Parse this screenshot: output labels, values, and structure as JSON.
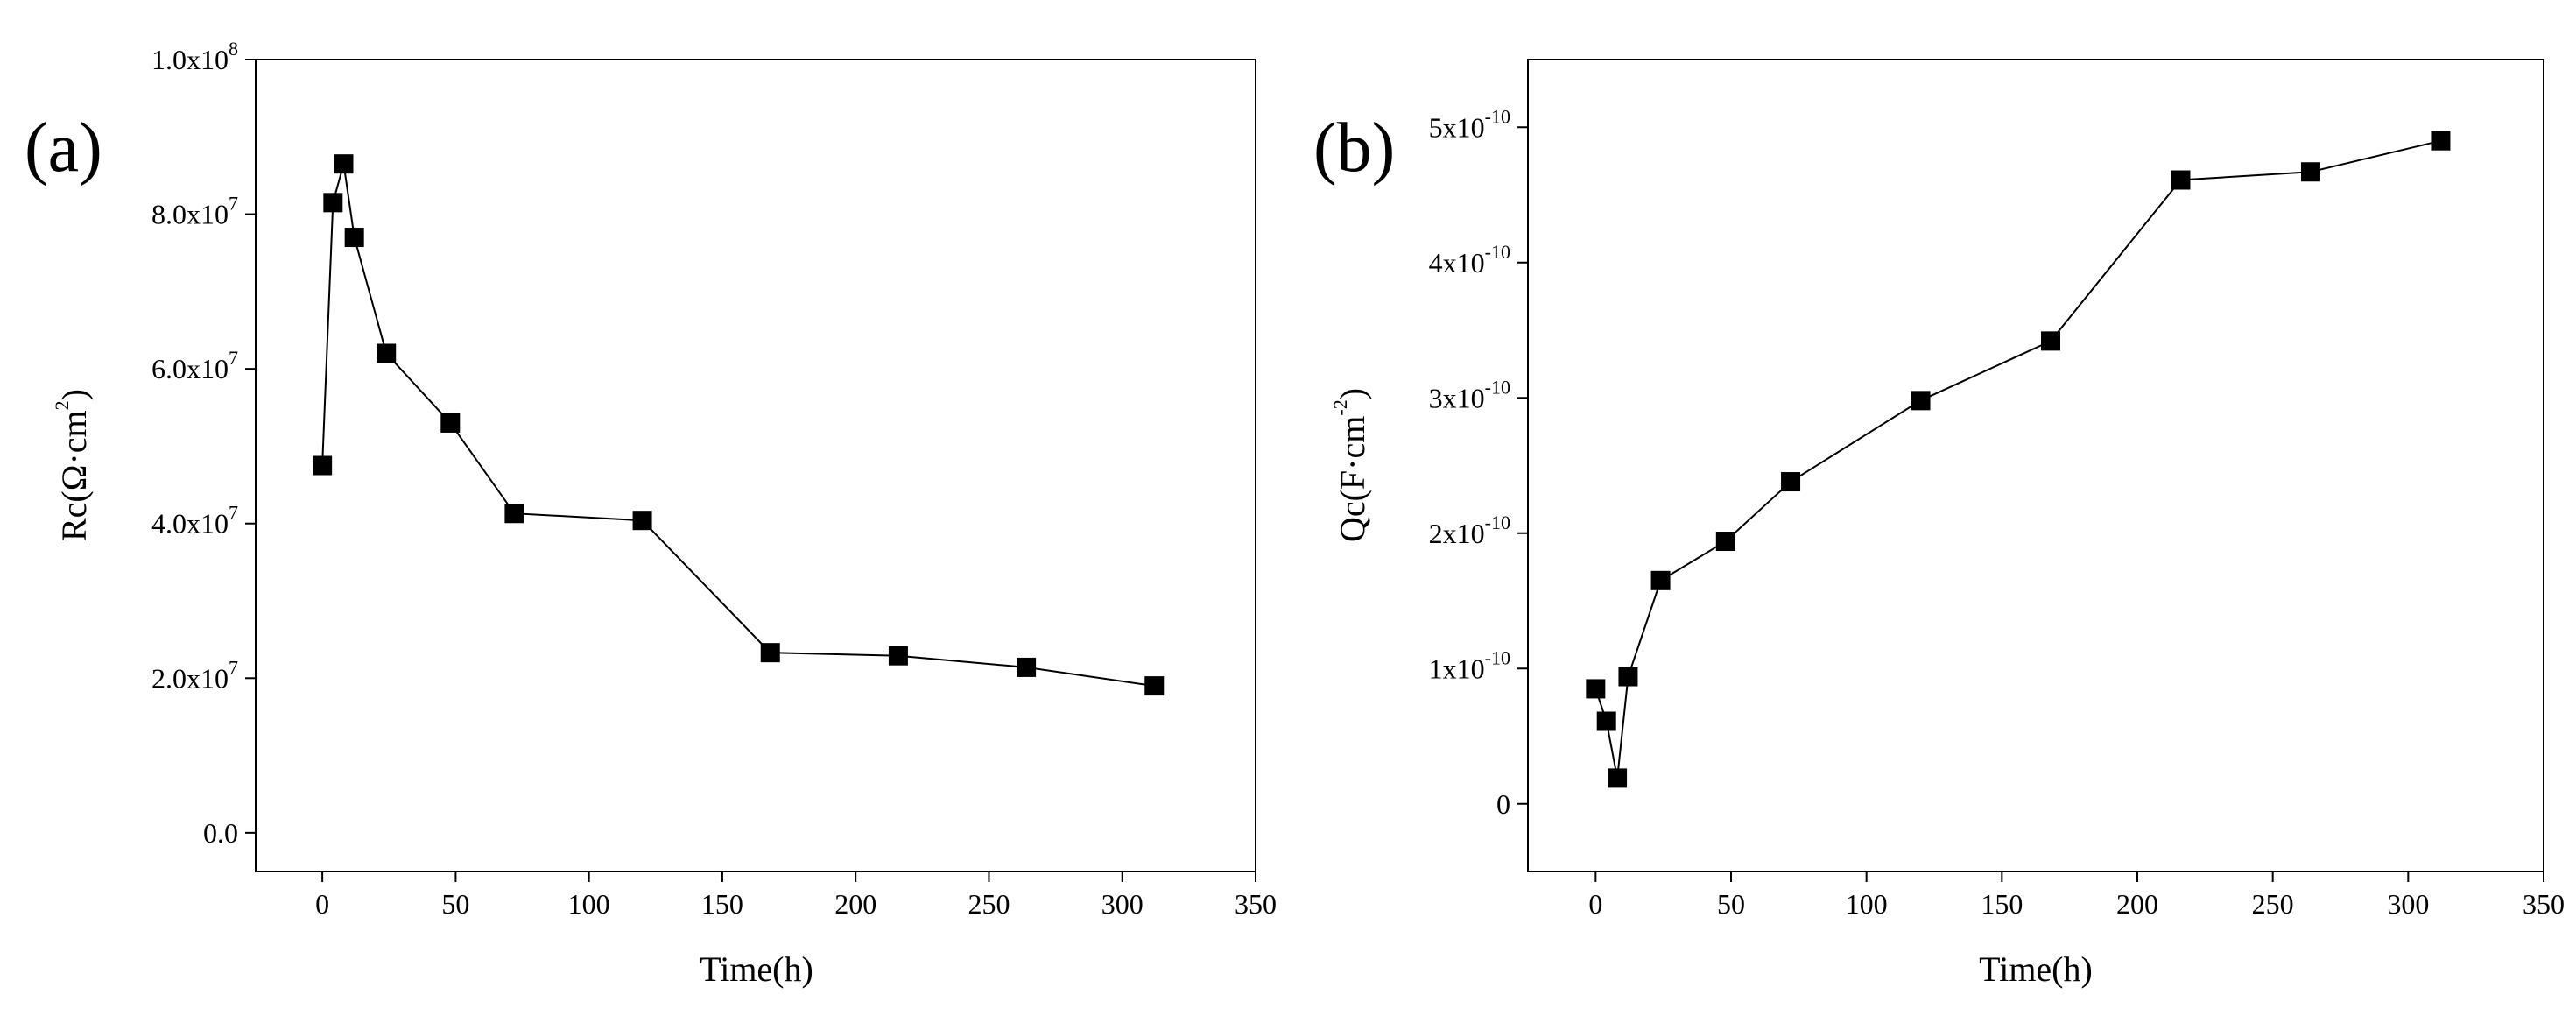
{
  "chart_data": [
    {
      "type": "line",
      "panel_label": "(a)",
      "title": "",
      "xlabel": "Time(h)",
      "ylabel_parts": {
        "base": "Rc(Ω·cm",
        "sup": "2",
        "tail": ")"
      },
      "xlim": [
        -25,
        350
      ],
      "ylim": [
        -5000000,
        100000000
      ],
      "grid": false,
      "x_ticks": [
        {
          "value": 0,
          "label": "0"
        },
        {
          "value": 50,
          "label": "50"
        },
        {
          "value": 100,
          "label": "100"
        },
        {
          "value": 150,
          "label": "150"
        },
        {
          "value": 200,
          "label": "200"
        },
        {
          "value": 250,
          "label": "250"
        },
        {
          "value": 300,
          "label": "300"
        },
        {
          "value": 350,
          "label": "350"
        }
      ],
      "y_ticks": [
        {
          "value": 0,
          "base": "0.0",
          "exp": ""
        },
        {
          "value": 20000000,
          "base": "2.0x10",
          "exp": "7"
        },
        {
          "value": 40000000,
          "base": "4.0x10",
          "exp": "7"
        },
        {
          "value": 60000000,
          "base": "6.0x10",
          "exp": "7"
        },
        {
          "value": 80000000,
          "base": "8.0x10",
          "exp": "7"
        },
        {
          "value": 100000000,
          "base": "1.0x10",
          "exp": "8"
        }
      ],
      "series": [
        {
          "name": "Rc",
          "marker": "square",
          "color": "#000000",
          "x": [
            0,
            4,
            8,
            12,
            24,
            48,
            72,
            120,
            168,
            216,
            264,
            312
          ],
          "y": [
            47500000,
            81500000,
            86500000,
            77000000,
            62000000,
            53000000,
            41300000,
            40400000,
            23300000,
            22900000,
            21400000,
            19000000
          ]
        }
      ]
    },
    {
      "type": "line",
      "panel_label": "(b)",
      "title": "",
      "xlabel": "Time(h)",
      "ylabel_parts": {
        "base": "Qc(F·cm",
        "sup": "-2",
        "tail": ")"
      },
      "xlim": [
        -25,
        350
      ],
      "ylim": [
        -5e-11,
        5.5e-10
      ],
      "grid": false,
      "x_ticks": [
        {
          "value": 0,
          "label": "0"
        },
        {
          "value": 50,
          "label": "50"
        },
        {
          "value": 100,
          "label": "100"
        },
        {
          "value": 150,
          "label": "150"
        },
        {
          "value": 200,
          "label": "200"
        },
        {
          "value": 250,
          "label": "250"
        },
        {
          "value": 300,
          "label": "300"
        },
        {
          "value": 350,
          "label": "350"
        }
      ],
      "y_ticks": [
        {
          "value": 0,
          "base": "0",
          "exp": ""
        },
        {
          "value": 1e-10,
          "base": "1x10",
          "exp": "-10"
        },
        {
          "value": 2e-10,
          "base": "2x10",
          "exp": "-10"
        },
        {
          "value": 3e-10,
          "base": "3x10",
          "exp": "-10"
        },
        {
          "value": 4e-10,
          "base": "4x10",
          "exp": "-10"
        },
        {
          "value": 5e-10,
          "base": "5x10",
          "exp": "-10"
        }
      ],
      "series": [
        {
          "name": "Qc",
          "marker": "square",
          "color": "#000000",
          "x": [
            0,
            4,
            8,
            12,
            24,
            48,
            72,
            120,
            168,
            216,
            264,
            312
          ],
          "y": [
            8.5e-11,
            6.1e-11,
            1.9e-11,
            9.4e-11,
            1.65e-10,
            1.94e-10,
            2.38e-10,
            2.98e-10,
            3.42e-10,
            4.61e-10,
            4.67e-10,
            4.9e-10
          ]
        }
      ]
    }
  ]
}
